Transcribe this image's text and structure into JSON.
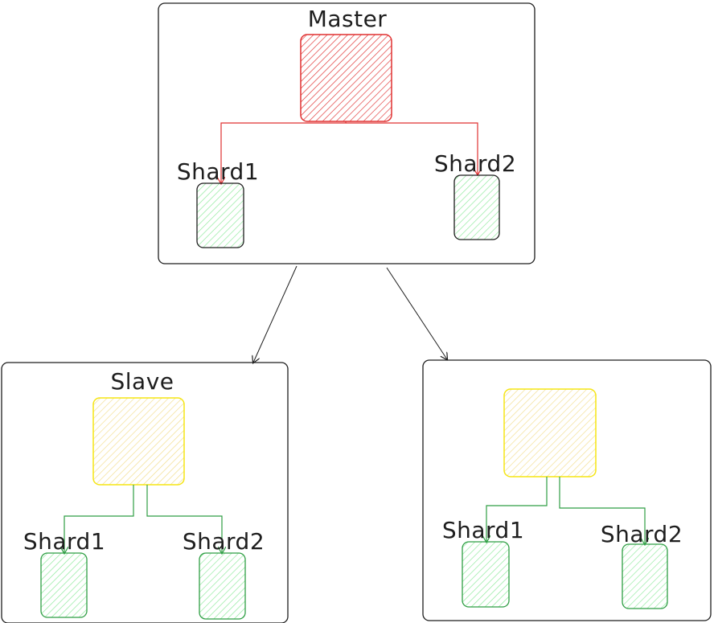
{
  "colors": {
    "stroke_dark": "#1e1e1e",
    "master_red": "#e03131",
    "master_fill": "#ffc9c9",
    "shard_green": "#2f9e44",
    "shard_fill": "#b2f2bb",
    "slave_yellow": "#f5e514",
    "slave_fill": "#ffec99"
  },
  "master_group": {
    "title": "Master",
    "shard1_label": "Shard1",
    "shard2_label": "Shard2"
  },
  "slave_group_left": {
    "title": "Slave",
    "shard1_label": "Shard1",
    "shard2_label": "Shard2"
  },
  "slave_group_right": {
    "title": "",
    "shard1_label": "Shard1",
    "shard2_label": "Shard2"
  }
}
